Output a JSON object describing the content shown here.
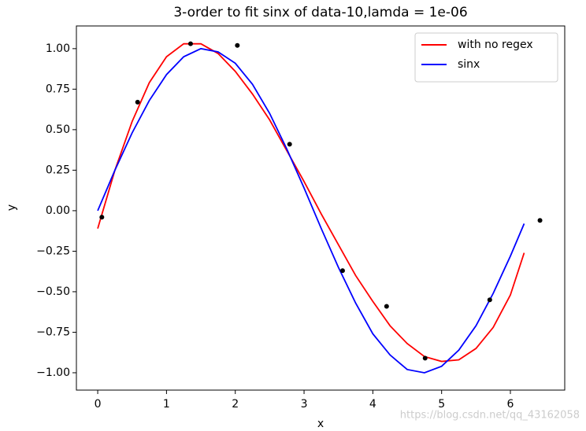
{
  "chart_data": {
    "type": "line",
    "title": "3-order to fit sinx of data-10,lamda = 1e-06",
    "x_label": "x",
    "y_label": "y",
    "watermark": "https://blog.csdn.net/qq_43162058",
    "xlim": [
      -0.31,
      6.79
    ],
    "ylim": [
      -1.107,
      1.14
    ],
    "xticks": [
      0,
      1,
      2,
      3,
      4,
      5,
      6
    ],
    "yticks": [
      {
        "value": 1.0,
        "label": "1.00"
      },
      {
        "value": 0.75,
        "label": "0.75"
      },
      {
        "value": 0.5,
        "label": "0.50"
      },
      {
        "value": 0.25,
        "label": "0.25"
      },
      {
        "value": 0.0,
        "label": "0.00"
      },
      {
        "value": -0.25,
        "label": "−0.25"
      },
      {
        "value": -0.5,
        "label": "−0.50"
      },
      {
        "value": -0.75,
        "label": "−0.75"
      },
      {
        "value": -1.0,
        "label": "−1.00"
      }
    ],
    "legend": "upper right",
    "series": [
      {
        "name": "with no regex",
        "color": "#ff0000",
        "type": "line",
        "x": [
          0,
          0.25,
          0.5,
          0.75,
          1.0,
          1.25,
          1.5,
          1.75,
          2.0,
          2.25,
          2.5,
          2.75,
          3.0,
          3.25,
          3.5,
          3.75,
          4.0,
          4.25,
          4.5,
          4.75,
          5.0,
          5.25,
          5.5,
          5.75,
          6.0,
          6.2
        ],
        "values": [
          -0.11,
          0.25,
          0.55,
          0.79,
          0.95,
          1.03,
          1.03,
          0.97,
          0.86,
          0.72,
          0.56,
          0.37,
          0.18,
          -0.02,
          -0.21,
          -0.4,
          -0.56,
          -0.71,
          -0.82,
          -0.9,
          -0.93,
          -0.92,
          -0.85,
          -0.72,
          -0.52,
          -0.26
        ]
      },
      {
        "name": "sinx",
        "color": "#0000ff",
        "type": "line",
        "x": [
          0,
          0.25,
          0.5,
          0.75,
          1.0,
          1.25,
          1.5,
          1.75,
          2.0,
          2.25,
          2.5,
          2.75,
          3.0,
          3.25,
          3.5,
          3.75,
          4.0,
          4.25,
          4.5,
          4.75,
          5.0,
          5.25,
          5.5,
          5.75,
          6.0,
          6.2
        ],
        "values": [
          0,
          0.25,
          0.48,
          0.68,
          0.84,
          0.95,
          1.0,
          0.98,
          0.91,
          0.78,
          0.6,
          0.38,
          0.14,
          -0.11,
          -0.35,
          -0.57,
          -0.76,
          -0.89,
          -0.98,
          -1.0,
          -0.96,
          -0.86,
          -0.71,
          -0.51,
          -0.28,
          -0.08
        ]
      },
      {
        "color": "#000000",
        "type": "scatter",
        "x": [
          0.06,
          0.58,
          1.35,
          2.03,
          2.79,
          3.56,
          4.2,
          4.76,
          5.7,
          6.43
        ],
        "values": [
          -0.04,
          0.67,
          1.03,
          1.02,
          0.41,
          -0.37,
          -0.59,
          -0.91,
          -0.55,
          -0.06
        ]
      }
    ]
  }
}
